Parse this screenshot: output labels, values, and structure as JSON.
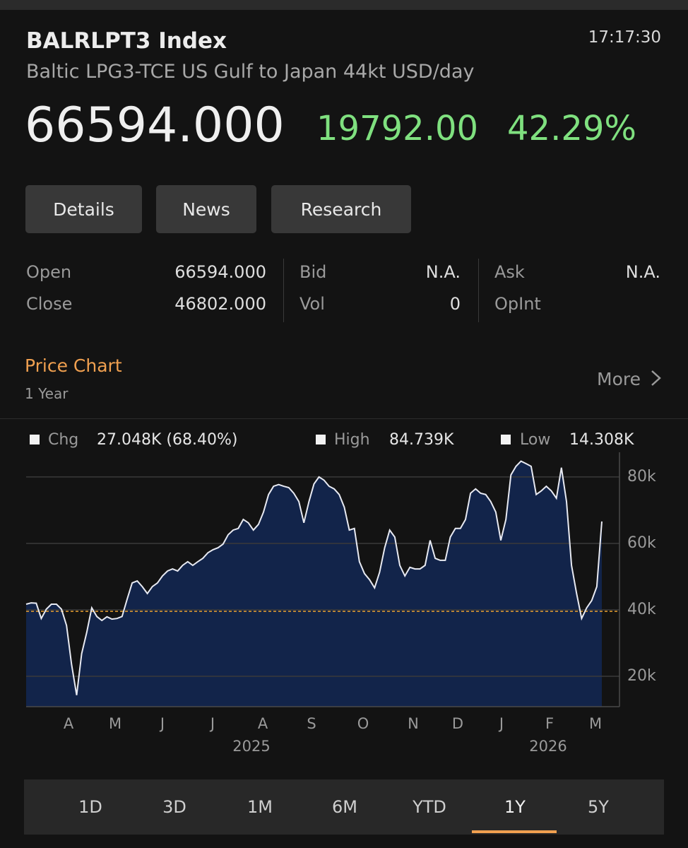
{
  "header": {
    "ticker": "BALRLPT3 Index",
    "time": "17:17:30",
    "description": "Baltic LPG3-TCE US Gulf to Japan 44kt USD/day",
    "price": "66594.000",
    "change": "19792.00",
    "change_pct": "42.29%"
  },
  "tabs": [
    "Details",
    "News",
    "Research"
  ],
  "quote": [
    [
      {
        "label": "Open",
        "value": "66594.000"
      },
      {
        "label": "Bid",
        "value": "N.A."
      },
      {
        "label": "Ask",
        "value": "N.A."
      }
    ],
    [
      {
        "label": "Close",
        "value": "46802.000"
      },
      {
        "label": "Vol",
        "value": "0"
      },
      {
        "label": "OpInt"
      }
    ]
  ],
  "section": {
    "title": "Price Chart",
    "subtitle": "1 Year",
    "more": "More"
  },
  "chart_data": {
    "type": "area",
    "stats": [
      {
        "label": "Chg",
        "value": "27.048K (68.40%)"
      },
      {
        "label": "High",
        "value": "84.739K"
      },
      {
        "label": "Low",
        "value": "14.308K"
      }
    ],
    "x_labels": [
      "A",
      "M",
      "J",
      "J",
      "A",
      "S",
      "O",
      "N",
      "D",
      "J",
      "F",
      "M"
    ],
    "x_year_labels": [
      "2025",
      "2026"
    ],
    "values": [
      41700,
      42100,
      42000,
      37400,
      40200,
      41700,
      41700,
      40200,
      35300,
      23600,
      14308,
      26800,
      33200,
      40600,
      38000,
      36800,
      37900,
      37200,
      37400,
      38000,
      43200,
      48100,
      48700,
      47000,
      44900,
      47000,
      48100,
      50200,
      51700,
      52300,
      51700,
      53400,
      54500,
      53400,
      54500,
      55500,
      57200,
      58100,
      58700,
      59800,
      62600,
      64000,
      64500,
      67200,
      66200,
      64000,
      65700,
      69400,
      74700,
      77200,
      77700,
      77200,
      76800,
      75100,
      72600,
      66200,
      72600,
      77900,
      80000,
      79000,
      77200,
      76400,
      74700,
      70900,
      64000,
      64500,
      54500,
      50900,
      49100,
      46600,
      51300,
      58700,
      64000,
      61900,
      53400,
      50200,
      52800,
      52300,
      52300,
      53400,
      60900,
      55500,
      54900,
      54900,
      61900,
      64500,
      64500,
      67200,
      75100,
      76400,
      75100,
      74700,
      72600,
      69400,
      60900,
      67200,
      80600,
      83200,
      84739,
      84000,
      83200,
      74700,
      75800,
      77200,
      75800,
      73600,
      82800,
      72600,
      53400,
      44900,
      37400,
      40600,
      42800,
      47000,
      66594
    ],
    "color": "#e8eaf2",
    "fill": "#12244a",
    "reference_line": 39546,
    "reference_color": "#e8a030",
    "ylim": [
      10850,
      85300
    ],
    "yticks": [
      {
        "value": 20000,
        "label": "20k"
      },
      {
        "value": 40000,
        "label": "40k"
      },
      {
        "value": 60000,
        "label": "60k"
      },
      {
        "value": 80000,
        "label": "80k"
      }
    ],
    "grid": true
  },
  "ranges": [
    "1D",
    "3D",
    "1M",
    "6M",
    "YTD",
    "1Y",
    "5Y"
  ],
  "selected_range": "1Y"
}
